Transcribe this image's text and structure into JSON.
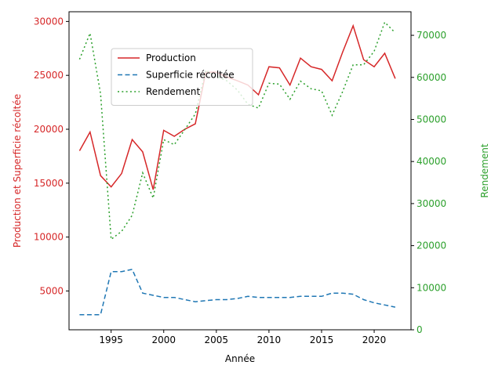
{
  "chart_data": {
    "type": "line",
    "xlabel": "Année",
    "ylabel_left": "Production et Superficie récoltée",
    "ylabel_right": "Rendement",
    "xlim": [
      1991,
      2023.5
    ],
    "ylim_left": [
      1400,
      30900
    ],
    "ylim_right": [
      0,
      75600
    ],
    "x_ticks": [
      1995,
      2000,
      2005,
      2010,
      2015,
      2020
    ],
    "y_ticks_left": [
      5000,
      10000,
      15000,
      20000,
      25000,
      30000
    ],
    "y_ticks_right": [
      0,
      10000,
      20000,
      30000,
      40000,
      50000,
      60000,
      70000
    ],
    "x": [
      1992,
      1993,
      1994,
      1995,
      1996,
      1997,
      1998,
      1999,
      2000,
      2001,
      2002,
      2003,
      2004,
      2005,
      2006,
      2007,
      2008,
      2009,
      2010,
      2011,
      2012,
      2013,
      2014,
      2015,
      2016,
      2017,
      2018,
      2019,
      2020,
      2021,
      2022
    ],
    "series": [
      {
        "name": "Production",
        "axis": "left",
        "color": "#d62728",
        "style": "solid",
        "values": [
          18000,
          19750,
          15700,
          14650,
          15900,
          19050,
          17900,
          14400,
          19900,
          19350,
          20000,
          20500,
          25300,
          25300,
          24850,
          24500,
          24100,
          23200,
          25800,
          25700,
          24100,
          26600,
          25800,
          25550,
          24500,
          27150,
          29600,
          26450,
          25800,
          27050,
          24700
        ]
      },
      {
        "name": "Superficie récoltée",
        "axis": "left",
        "color": "#1f77b4",
        "style": "dashed",
        "values": [
          2800,
          2800,
          2800,
          6800,
          6800,
          7000,
          4800,
          4600,
          4400,
          4400,
          4200,
          4000,
          4100,
          4200,
          4200,
          4300,
          4500,
          4400,
          4400,
          4400,
          4400,
          4500,
          4500,
          4500,
          4800,
          4800,
          4700,
          4200,
          3900,
          3700,
          3500
        ]
      },
      {
        "name": "Rendement",
        "axis": "right",
        "color": "#2ca02c",
        "style": "dotted",
        "values": [
          64300,
          70500,
          56100,
          21500,
          23400,
          27200,
          37300,
          31300,
          45200,
          44000,
          47600,
          51300,
          61700,
          60200,
          59200,
          57000,
          53600,
          52700,
          58600,
          58400,
          54800,
          59100,
          57300,
          56800,
          51000,
          56600,
          63000,
          63000,
          66200,
          73100,
          70600
        ]
      }
    ],
    "legend_position": "upper-left",
    "grid": false
  }
}
